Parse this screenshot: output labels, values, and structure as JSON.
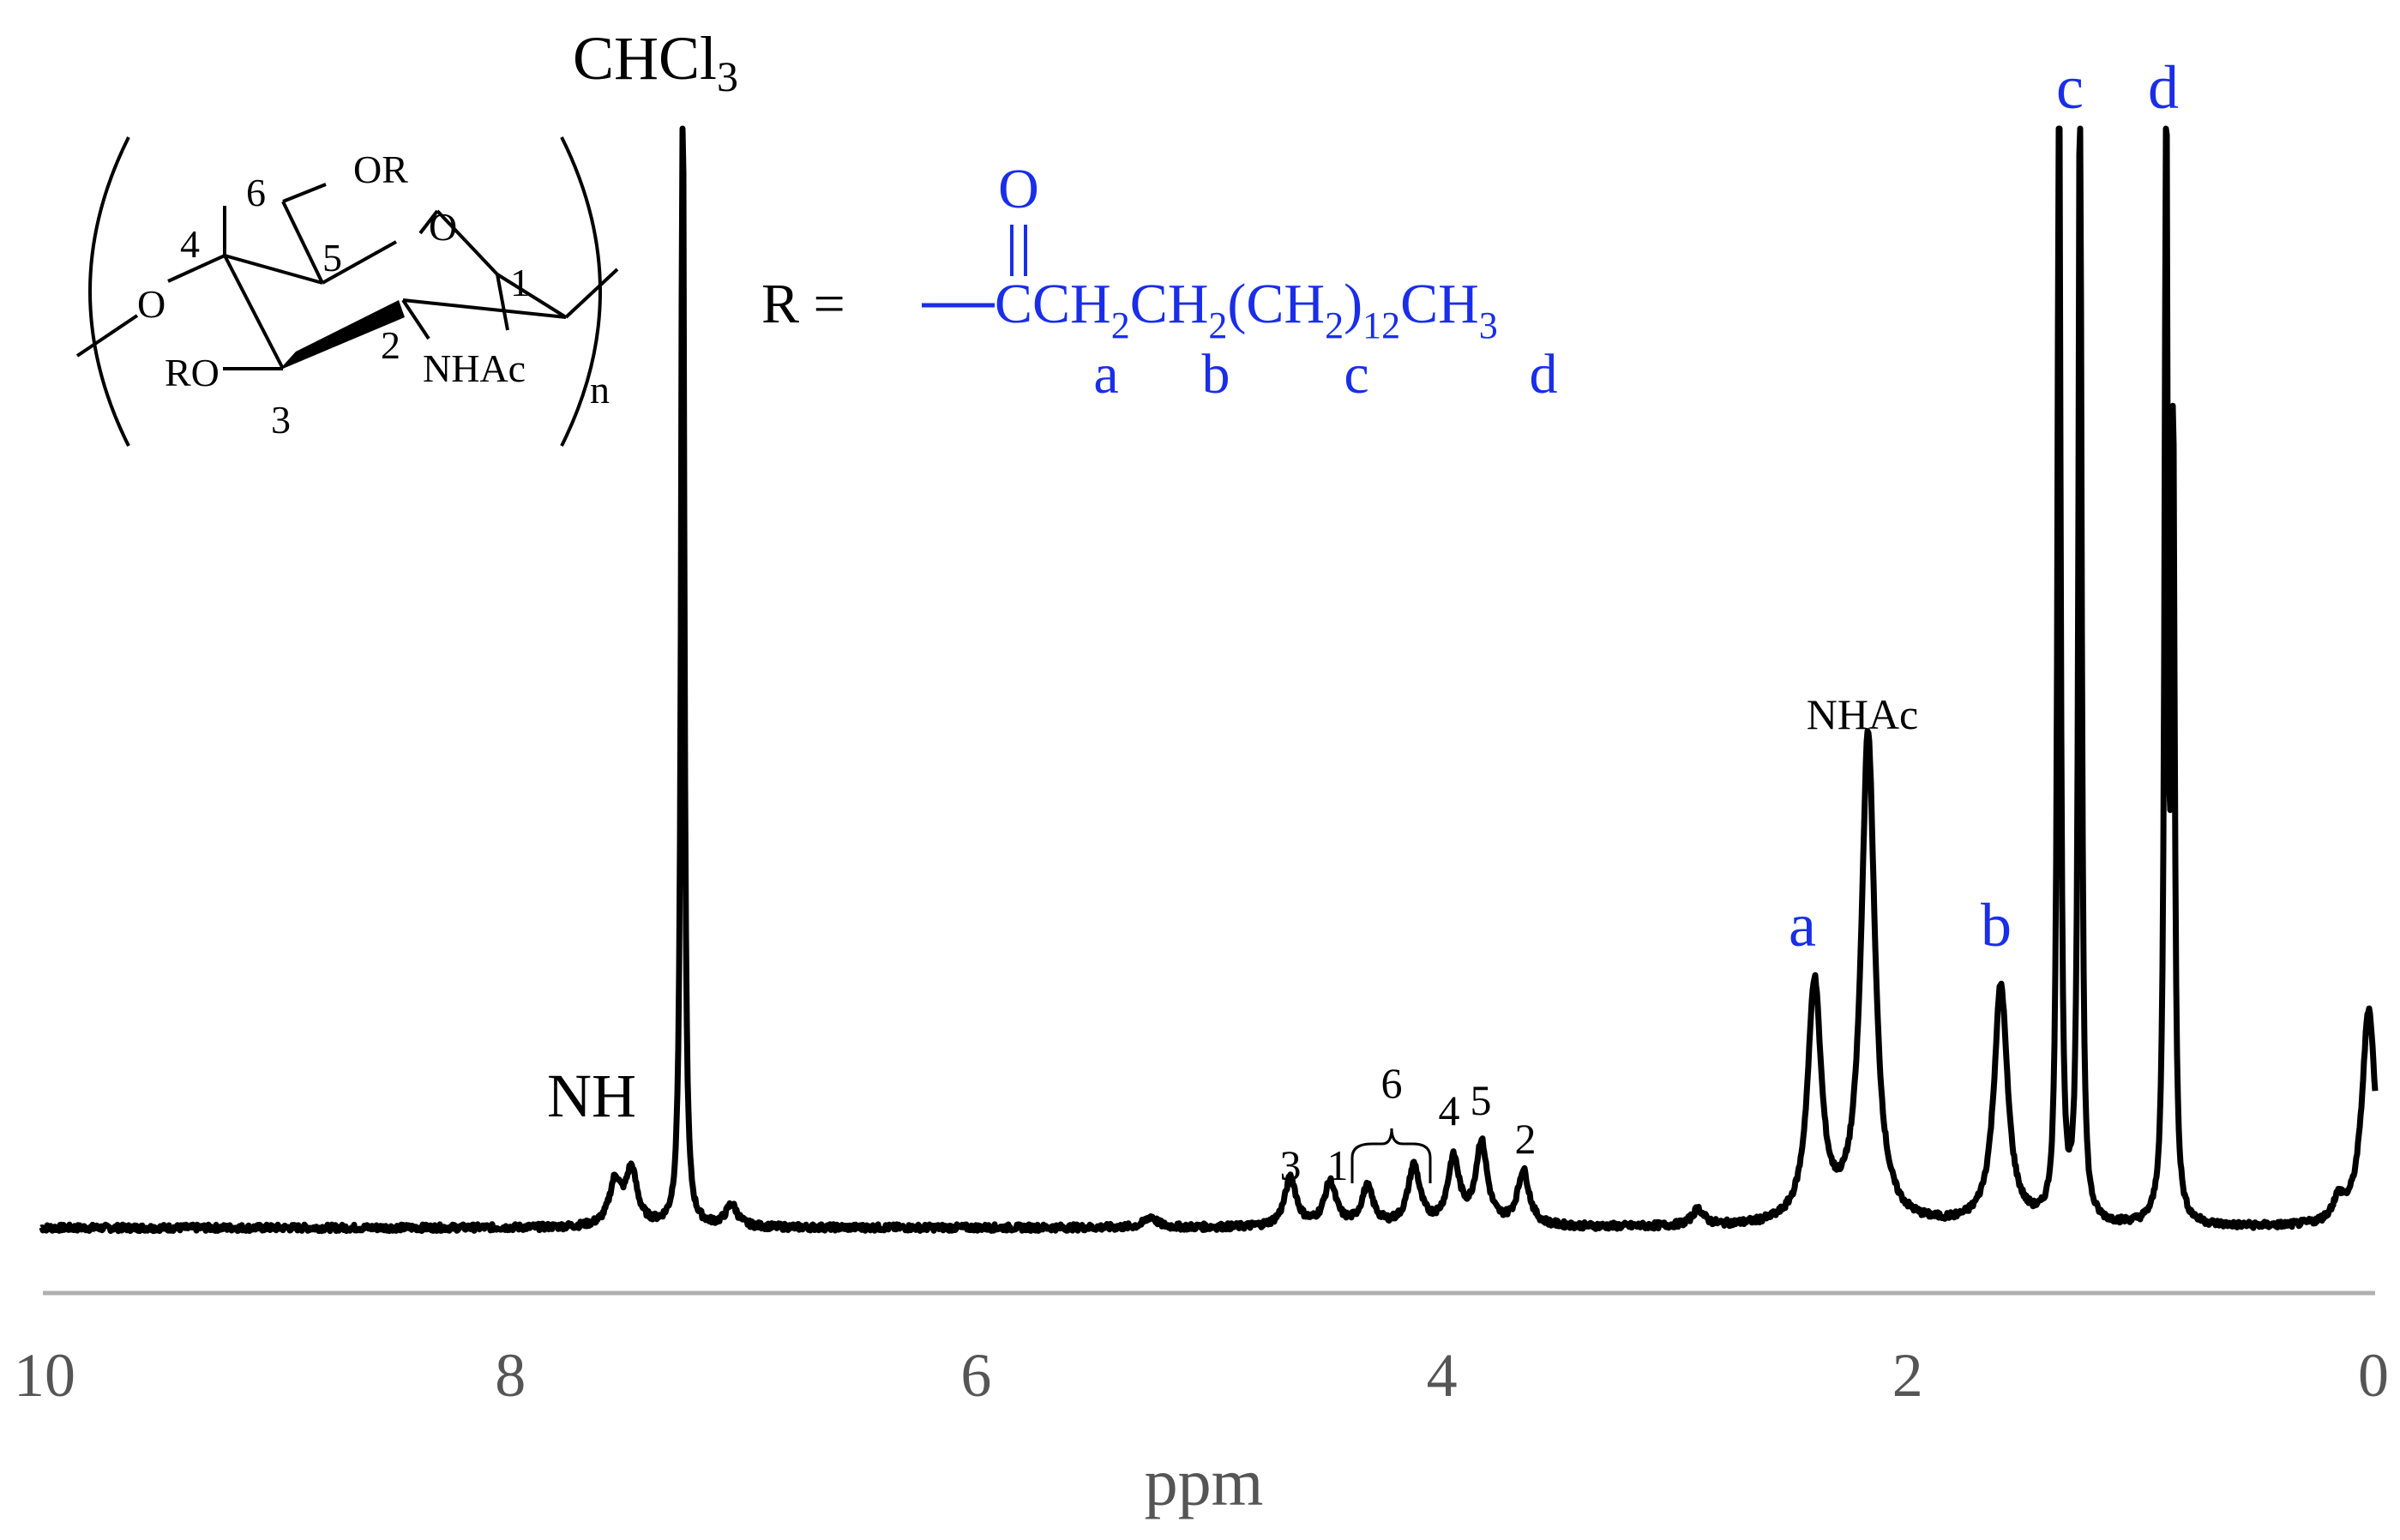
{
  "chart_data": {
    "type": "line",
    "title": "",
    "xlabel": "ppm",
    "ylabel": "",
    "xlim": [
      10,
      0
    ],
    "x_reversed": true,
    "x_ticks": [
      "10",
      "8",
      "6",
      "4",
      "2",
      "0"
    ],
    "x_tick_values": [
      10,
      8,
      6,
      4,
      2,
      0
    ],
    "grid": false,
    "series": [
      {
        "peaks": [
          {
            "ppm": 7.55,
            "intensity": 0.04
          },
          {
            "ppm": 7.48,
            "intensity": 0.05
          },
          {
            "ppm": 7.26,
            "intensity": 1.1
          },
          {
            "ppm": 7.05,
            "intensity": 0.02
          },
          {
            "ppm": 5.25,
            "intensity": 0.01
          },
          {
            "ppm": 4.65,
            "intensity": 0.045
          },
          {
            "ppm": 4.48,
            "intensity": 0.04
          },
          {
            "ppm": 4.32,
            "intensity": 0.035
          },
          {
            "ppm": 4.12,
            "intensity": 0.055
          },
          {
            "ppm": 3.95,
            "intensity": 0.06
          },
          {
            "ppm": 3.83,
            "intensity": 0.075
          },
          {
            "ppm": 3.65,
            "intensity": 0.05
          },
          {
            "ppm": 2.9,
            "intensity": 0.015
          },
          {
            "ppm": 2.4,
            "intensity": 0.22
          },
          {
            "ppm": 2.17,
            "intensity": 0.45
          },
          {
            "ppm": 1.6,
            "intensity": 0.22
          },
          {
            "ppm": 1.35,
            "intensity": 1.1
          },
          {
            "ppm": 1.26,
            "intensity": 1.1
          },
          {
            "ppm": 0.89,
            "intensity": 1.05
          },
          {
            "ppm": 0.86,
            "intensity": 0.7
          },
          {
            "ppm": 0.15,
            "intensity": 0.02
          },
          {
            "ppm": 0.02,
            "intensity": 0.2
          }
        ]
      }
    ],
    "annotations": {
      "chcl3_main": "CHCl",
      "chcl3_sub": "3",
      "nh": "NH",
      "nhac": "NHAc",
      "p3": "3",
      "p1": "1",
      "p6": "6",
      "p4": "4",
      "p5": "5",
      "p2": "2",
      "a": "a",
      "b": "b",
      "c": "c",
      "d": "d"
    }
  },
  "structure": {
    "ring_labels": {
      "c1": "1",
      "c2": "2",
      "c3": "3",
      "c4": "4",
      "c5": "5",
      "c6": "6",
      "or": "OR",
      "ring_o": "O",
      "o_left": "O",
      "ro": "RO",
      "nhac": "NHAc",
      "n": "n"
    },
    "r_group": {
      "r_eq": "R =",
      "carbonyl_o": "O",
      "formula_parts": [
        "CCH",
        "2",
        "CH",
        "2",
        "(CH",
        "2",
        ")",
        "12",
        "CH",
        "3"
      ],
      "letters": [
        "a",
        "b",
        "c",
        "d"
      ]
    }
  },
  "colors": {
    "spectrum": "#000000",
    "assignment_blue": "#1a2ee8",
    "axis": "#b0b0b0",
    "tick_text": "#555555"
  }
}
